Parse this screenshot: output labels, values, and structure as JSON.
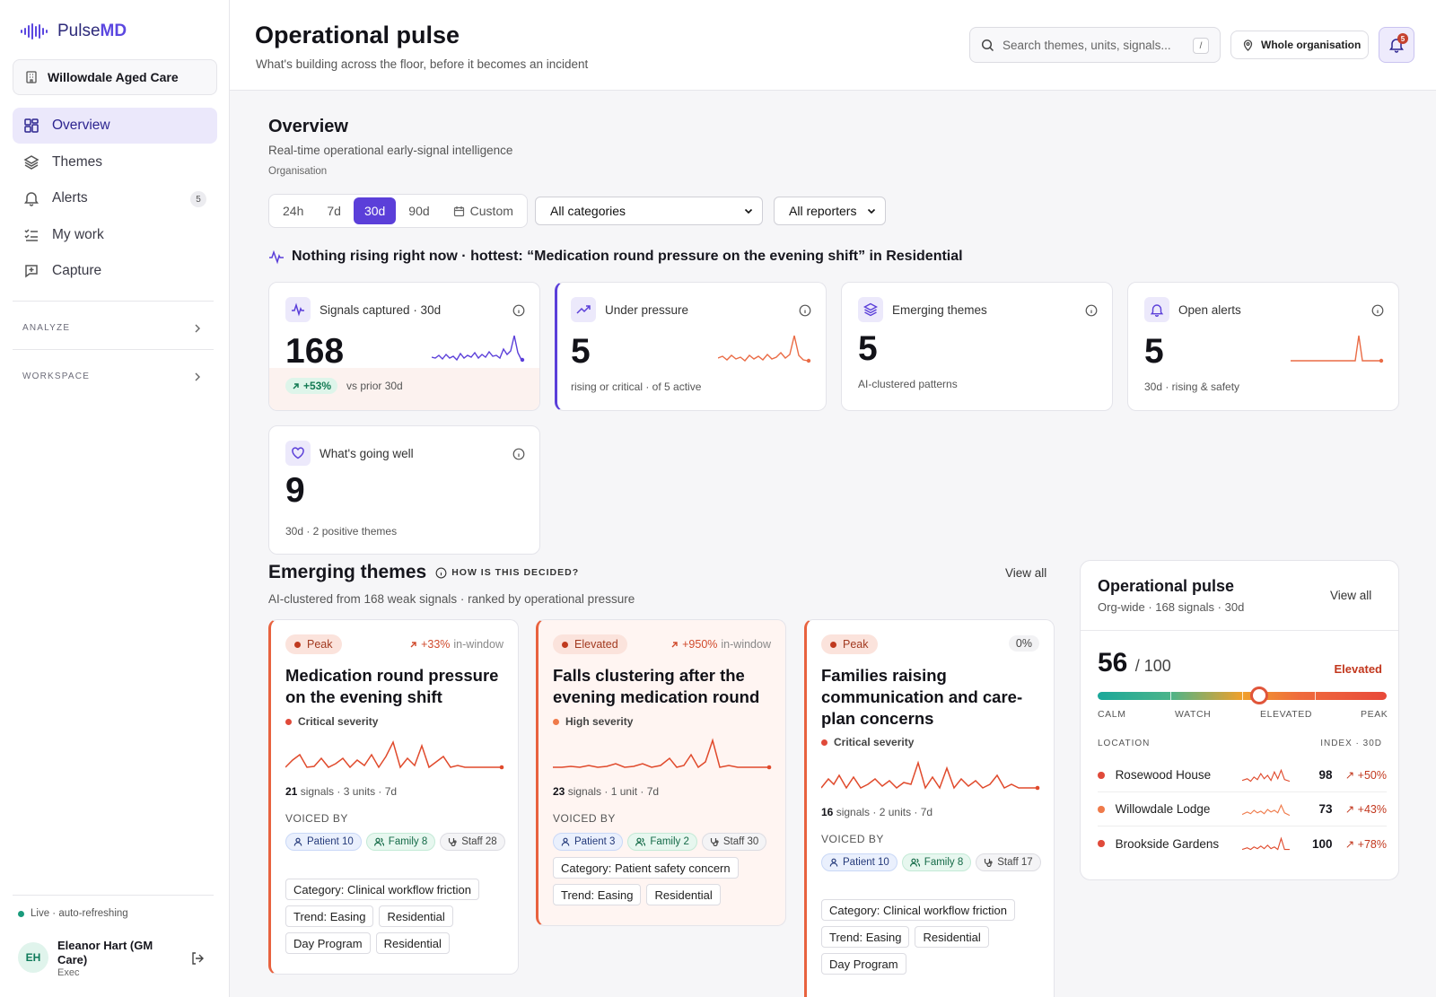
{
  "app": {
    "brand": "PulseMD",
    "brand_accent_hex": "#5b47e0",
    "org": "Willowdale Aged Care"
  },
  "nav": {
    "items": [
      {
        "label": "Overview",
        "icon": "grid-icon",
        "active": true
      },
      {
        "label": "Themes",
        "icon": "layers-icon"
      },
      {
        "label": "Alerts",
        "icon": "bell-icon",
        "badge": "5"
      },
      {
        "label": "My work",
        "icon": "checklist-icon"
      },
      {
        "label": "Capture",
        "icon": "plus-square-icon"
      }
    ],
    "sections": [
      "ANALYZE",
      "WORKSPACE"
    ]
  },
  "sidebar_footer": {
    "live": "Live · auto-refreshing",
    "user_initials": "EH",
    "user_name": "Eleanor Hart (GM Care)",
    "user_role": "Exec"
  },
  "header": {
    "title": "Operational pulse",
    "subtitle": "What's building across the floor, before it becomes an incident",
    "search_placeholder": "Search themes, units, signals...",
    "search_shortcut": "/",
    "scope": "Whole organisation",
    "notif_count": "5"
  },
  "overview": {
    "title": "Overview",
    "subtitle": "Real-time operational early-signal intelligence",
    "org_label": "Organisation",
    "ranges": [
      "24h",
      "7d",
      "30d",
      "90d",
      "Custom"
    ],
    "active_range": "30d",
    "category_filter": "All categories",
    "reporter_filter": "All reporters",
    "headline": "Nothing rising right now · hottest: “Medication round pressure on the evening shift” in Residential"
  },
  "kpis": [
    {
      "label": "Signals captured · 30d",
      "value": "168",
      "change": "+53%",
      "footnote": "vs prior 30d",
      "icon": "activity-icon",
      "spark_color": "#5b3fd9"
    },
    {
      "label": "Under pressure",
      "value": "5",
      "footnote": "rising or critical · of 5 active",
      "icon": "trending-up-icon",
      "spark_color": "#ea6b45"
    },
    {
      "label": "Emerging themes",
      "value": "5",
      "footnote": "AI-clustered patterns",
      "icon": "layers-icon"
    },
    {
      "label": "Open alerts",
      "value": "5",
      "footnote": "30d · rising & safety",
      "icon": "bell-icon",
      "spark_color": "#ea6b45"
    },
    {
      "label": "What's going well",
      "value": "9",
      "footnote": "30d · 2 positive themes",
      "icon": "heart-icon"
    }
  ],
  "themes_section": {
    "title": "Emerging themes",
    "how": "HOW IS THIS DECIDED?",
    "subtitle": "AI-clustered from 168 weak signals · ranked by operational pressure",
    "view_all": "View all"
  },
  "themes": [
    {
      "level": "Peak",
      "delta": "+33%",
      "delta_suffix": "in-window",
      "title": "Medication round pressure on the evening shift",
      "severity": "Critical severity",
      "severity_color": "#e04a3a",
      "signals": "21",
      "meta": "signals · 3 units · 7d",
      "voiced_label": "VOICED BY",
      "voices": [
        {
          "type": "p",
          "label": "Patient 10"
        },
        {
          "type": "f",
          "label": "Family 8"
        },
        {
          "type": "s",
          "label": "Staff 28"
        }
      ],
      "tags": [
        "Category: Clinical workflow friction",
        "Trend: Easing",
        "Residential",
        "Day Program",
        "Residential"
      ]
    },
    {
      "level": "Elevated",
      "delta": "+950%",
      "delta_suffix": "in-window",
      "title": "Falls clustering after the evening medication round",
      "severity": "High severity",
      "severity_color": "#ef7a4a",
      "signals": "23",
      "meta": "signals · 1 unit · 7d",
      "voiced_label": "VOICED BY",
      "voices": [
        {
          "type": "p",
          "label": "Patient 3"
        },
        {
          "type": "f",
          "label": "Family 2"
        },
        {
          "type": "s",
          "label": "Staff 30"
        }
      ],
      "tags": [
        "Category: Patient safety concern",
        "Trend: Easing",
        "Residential"
      ]
    },
    {
      "level": "Peak",
      "delta": "0%",
      "title": "Families raising communication and care-plan concerns",
      "severity": "Critical severity",
      "severity_color": "#e04a3a",
      "signals": "16",
      "meta": "signals · 2 units · 7d",
      "voiced_label": "VOICED BY",
      "voices": [
        {
          "type": "p",
          "label": "Patient 10"
        },
        {
          "type": "f",
          "label": "Family 8"
        },
        {
          "type": "s",
          "label": "Staff 17"
        }
      ],
      "tags": [
        "Category: Clinical workflow friction",
        "Trend: Easing",
        "Residential",
        "Day Program"
      ]
    }
  ],
  "pulse": {
    "title": "Operational pulse",
    "subtitle": "Org-wide · 168 signals · 30d",
    "view_all": "View all",
    "score": "56",
    "max": "/ 100",
    "score_fraction": 0.56,
    "level": "Elevated",
    "scale": [
      "CALM",
      "WATCH",
      "ELEVATED",
      "PEAK"
    ],
    "loc_header": "LOCATION",
    "idx_header": "INDEX · 30D",
    "locations": [
      {
        "name": "Rosewood House",
        "index": "98",
        "change": "+50%",
        "color": "#e04a3a"
      },
      {
        "name": "Willowdale Lodge",
        "index": "73",
        "change": "+43%",
        "color": "#ef7a4a"
      },
      {
        "name": "Brookside Gardens",
        "index": "100",
        "change": "+78%",
        "color": "#e04a3a"
      }
    ]
  }
}
